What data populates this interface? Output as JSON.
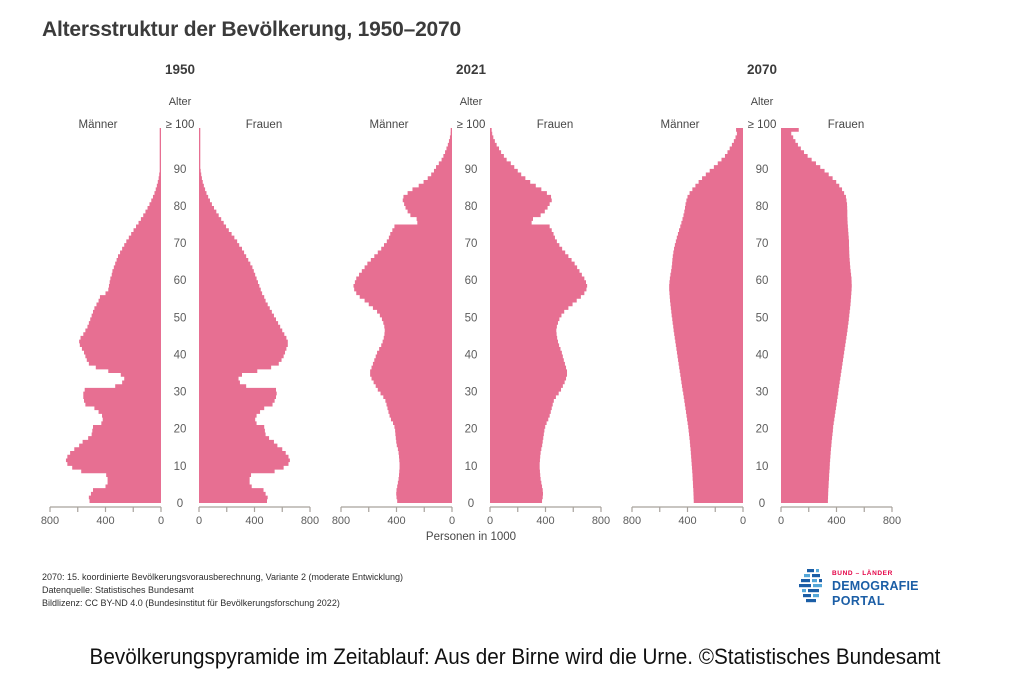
{
  "title": "Altersstruktur der Bevölkerung, 1950–2070",
  "caption": "Bevölkerungspyramide im Zeitablauf: Aus der Birne wird die Urne. ©Statistisches Bundesamt",
  "labels": {
    "age": "Alter",
    "men": "Männer",
    "women": "Frauen",
    "top_age": "≥ 100",
    "x_axis": "Personen in 1000"
  },
  "footnotes": {
    "line1": "2070: 15. koordinierte Bevölkerungsvorausberechnung, Variante 2 (moderate Entwicklung)",
    "line2": "Datenquelle: Statistisches Bundesamt",
    "line3": "Bildlizenz: CC BY-ND 4.0 (Bundesinstitut für Bevölkerungsforschung 2022)"
  },
  "logo": {
    "top": "BUND – LÄNDER",
    "middle": "DEMOGRAFIE",
    "bottom": "PORTAL"
  },
  "colors": {
    "pyramid": "#e76f92",
    "axis": "#a8a29c",
    "tick_text": "#5d5d5d",
    "label_text": "#474747",
    "title_text": "#3b3b3b",
    "logo_red": "#e40045",
    "logo_blue": "#1b5ea6",
    "logo_light_blue": "#55a7d8"
  },
  "chart_data": {
    "type": "bar",
    "subtype": "population-pyramid",
    "title": "Altersstruktur der Bevölkerung, 1950–2070",
    "unit": "Personen in 1000",
    "xlabel": "Personen in 1000",
    "ylabel": "Alter",
    "x_range_per_side": [
      0,
      800
    ],
    "x_tick_labels": [
      800,
      400,
      0
    ],
    "x_minor_tick_step": 200,
    "age_ticks": [
      0,
      10,
      20,
      30,
      40,
      50,
      60,
      70,
      80,
      90
    ],
    "top_age_label": "≥ 100",
    "ages": "0 bis 100 (letzter Wert = Alter 100 und älter), Werte in 1000 Personen je Altersjahr",
    "pyramids": [
      {
        "year": "1950",
        "male": [
          515,
          520,
          505,
          490,
          400,
          385,
          385,
          395,
          575,
          640,
          675,
          685,
          675,
          655,
          625,
          590,
          565,
          525,
          500,
          495,
          490,
          430,
          420,
          425,
          450,
          480,
          545,
          555,
          560,
          560,
          550,
          330,
          280,
          265,
          290,
          380,
          470,
          520,
          535,
          545,
          555,
          570,
          585,
          590,
          580,
          560,
          545,
          530,
          520,
          510,
          500,
          490,
          480,
          465,
          450,
          440,
          400,
          380,
          375,
          370,
          365,
          355,
          350,
          340,
          330,
          320,
          310,
          295,
          280,
          265,
          250,
          232,
          215,
          198,
          180,
          162,
          145,
          128,
          112,
          97,
          83,
          70,
          58,
          47,
          38,
          30,
          23,
          17,
          13,
          9,
          6.5,
          4.5,
          3,
          2,
          1.3,
          0.8,
          0.5,
          0.3,
          0.2,
          0.1,
          0.1
        ],
        "female": [
          490,
          495,
          480,
          465,
          380,
          365,
          365,
          375,
          545,
          610,
          645,
          655,
          645,
          625,
          600,
          565,
          540,
          505,
          480,
          475,
          470,
          415,
          405,
          415,
          440,
          470,
          530,
          545,
          555,
          560,
          555,
          340,
          295,
          285,
          310,
          420,
          520,
          575,
          595,
          610,
          620,
          630,
          640,
          640,
          630,
          615,
          600,
          585,
          570,
          555,
          540,
          525,
          510,
          495,
          480,
          470,
          455,
          445,
          435,
          425,
          415,
          405,
          395,
          385,
          370,
          355,
          340,
          325,
          310,
          290,
          275,
          255,
          235,
          215,
          195,
          178,
          160,
          142,
          125,
          108,
          93,
          79,
          66,
          54,
          44,
          35,
          27,
          21,
          16,
          12,
          8.5,
          6,
          4.2,
          2.9,
          2,
          1.3,
          0.8,
          0.5,
          0.3,
          0.2,
          0.2
        ]
      },
      {
        "year": "2021",
        "male": [
          395,
          400,
          402,
          400,
          395,
          390,
          385,
          382,
          380,
          378,
          378,
          380,
          382,
          385,
          390,
          398,
          402,
          405,
          408,
          410,
          415,
          425,
          440,
          450,
          458,
          465,
          472,
          480,
          495,
          515,
          535,
          550,
          565,
          580,
          590,
          590,
          580,
          570,
          560,
          550,
          540,
          525,
          510,
          500,
          492,
          487,
          485,
          488,
          495,
          505,
          520,
          540,
          570,
          600,
          630,
          665,
          690,
          705,
          710,
          700,
          690,
          670,
          650,
          630,
          610,
          585,
          560,
          535,
          510,
          490,
          470,
          455,
          445,
          430,
          415,
          250,
          255,
          300,
          320,
          335,
          345,
          355,
          350,
          320,
          285,
          240,
          205,
          175,
          150,
          130,
          115,
          95,
          75,
          62,
          50,
          40,
          30,
          22,
          15,
          10,
          6
        ],
        "female": [
          375,
          380,
          382,
          380,
          375,
          370,
          365,
          362,
          360,
          358,
          358,
          360,
          362,
          365,
          370,
          376,
          380,
          384,
          388,
          392,
          398,
          408,
          420,
          430,
          438,
          445,
          452,
          460,
          475,
          495,
          512,
          525,
          538,
          548,
          555,
          555,
          548,
          540,
          532,
          525,
          518,
          508,
          498,
          490,
          484,
          480,
          478,
          482,
          490,
          500,
          515,
          535,
          565,
          595,
          625,
          655,
          680,
          695,
          700,
          692,
          680,
          662,
          645,
          628,
          610,
          588,
          565,
          542,
          520,
          500,
          482,
          468,
          458,
          445,
          430,
          300,
          310,
          365,
          395,
          415,
          430,
          445,
          440,
          410,
          370,
          330,
          290,
          255,
          225,
          200,
          175,
          150,
          120,
          100,
          80,
          65,
          48,
          35,
          24,
          16,
          12
        ]
      },
      {
        "year": "2070",
        "male": [
          355,
          356,
          357,
          358,
          360,
          361,
          363,
          364,
          366,
          368,
          370,
          372,
          374,
          376,
          378,
          381,
          383,
          386,
          389,
          392,
          395,
          399,
          403,
          407,
          411,
          415,
          419,
          423,
          427,
          431,
          436,
          440,
          444,
          448,
          452,
          456,
          460,
          464,
          468,
          472,
          476,
          480,
          484,
          488,
          492,
          496,
          500,
          503,
          507,
          510,
          514,
          517,
          520,
          523,
          526,
          528,
          530,
          532,
          532,
          530,
          527,
          523,
          518,
          514,
          511,
          509,
          506,
          502,
          497,
          491,
          484,
          477,
          469,
          461,
          452,
          444,
          436,
          429,
          423,
          418,
          414,
          408,
          400,
          385,
          365,
          343,
          320,
          295,
          268,
          240,
          210,
          182,
          155,
          130,
          112,
          96,
          80,
          66,
          54,
          44,
          50
        ],
        "female": [
          338,
          339,
          340,
          341,
          343,
          344,
          346,
          347,
          349,
          351,
          352,
          354,
          356,
          358,
          360,
          363,
          365,
          368,
          371,
          374,
          376,
          380,
          384,
          388,
          392,
          396,
          400,
          404,
          408,
          412,
          415,
          419,
          423,
          427,
          431,
          435,
          439,
          443,
          447,
          451,
          455,
          459,
          463,
          467,
          471,
          475,
          479,
          482,
          486,
          489,
          492,
          495,
          498,
          501,
          503,
          505,
          507,
          509,
          510,
          509,
          508,
          505,
          502,
          499,
          497,
          495,
          493,
          492,
          491,
          490,
          490,
          488,
          486,
          484,
          482,
          480,
          479,
          478,
          478,
          477,
          476,
          472,
          468,
          455,
          440,
          420,
          398,
          372,
          344,
          314,
          283,
          252,
          221,
          192,
          166,
          143,
          122,
          104,
          88,
          74,
          128
        ]
      }
    ]
  }
}
